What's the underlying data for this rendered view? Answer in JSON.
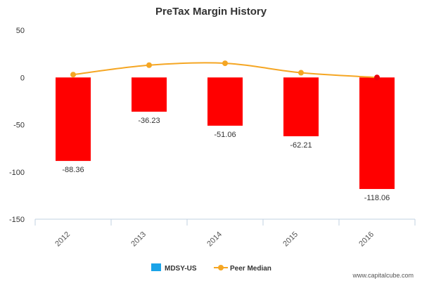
{
  "chart_data": {
    "type": "bar",
    "title": "PreTax Margin History",
    "categories": [
      "2012",
      "2013",
      "2014",
      "2015",
      "2016"
    ],
    "series": [
      {
        "name": "MDSY-US",
        "type": "bar",
        "values": [
          -88.36,
          -36.23,
          -51.06,
          -62.21,
          -118.06
        ],
        "color": "#ff0000",
        "legend_color": "#1aa3e8"
      },
      {
        "name": "Peer Median",
        "type": "line",
        "values": [
          3,
          13,
          15,
          5,
          0
        ],
        "color": "#f5a623",
        "last_point_color": "#e8000b"
      }
    ],
    "data_labels": [
      "-88.36",
      "-36.23",
      "-51.06",
      "-62.21",
      "-118.06"
    ],
    "yticks": [
      "50",
      "0",
      "-50",
      "-100",
      "-150"
    ],
    "ylim": [
      -150,
      50
    ],
    "xlabel": "",
    "ylabel": "",
    "grid": false,
    "legend_position": "bottom-center"
  },
  "credit": "www.capitalcube.com"
}
